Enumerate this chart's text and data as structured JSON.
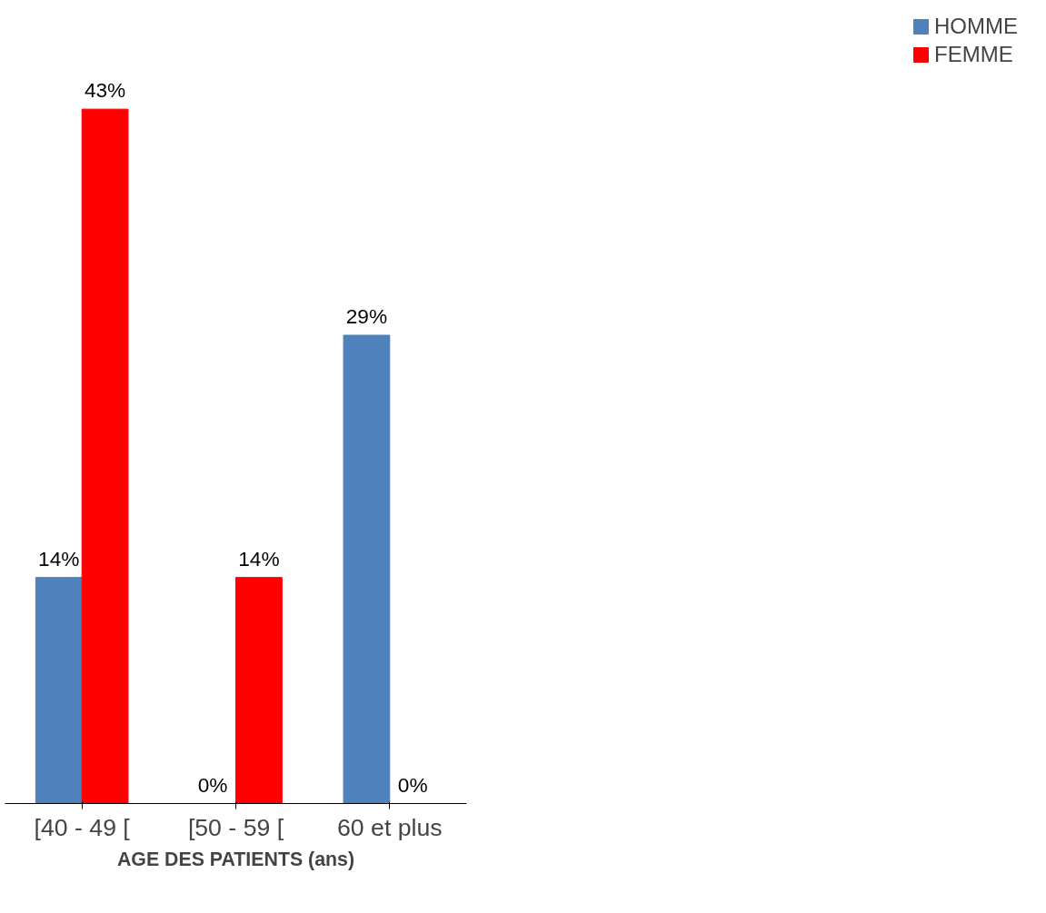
{
  "chart_data": {
    "type": "bar",
    "categories": [
      "[40 - 49 [",
      "[50 - 59 [",
      "60 et plus"
    ],
    "xlabel": "AGE DES PATIENTS (ans)",
    "legend": "right",
    "grid": false,
    "series": [
      {
        "name": "HOMME",
        "color": "#4f81bd",
        "values": [
          14,
          0,
          29
        ],
        "value_labels": [
          "14%",
          "0%",
          "29%"
        ]
      },
      {
        "name": "FEMME",
        "color": "#ff0000",
        "values": [
          43,
          14,
          0
        ],
        "value_labels": [
          "43%",
          "14%",
          "0%"
        ]
      }
    ]
  }
}
